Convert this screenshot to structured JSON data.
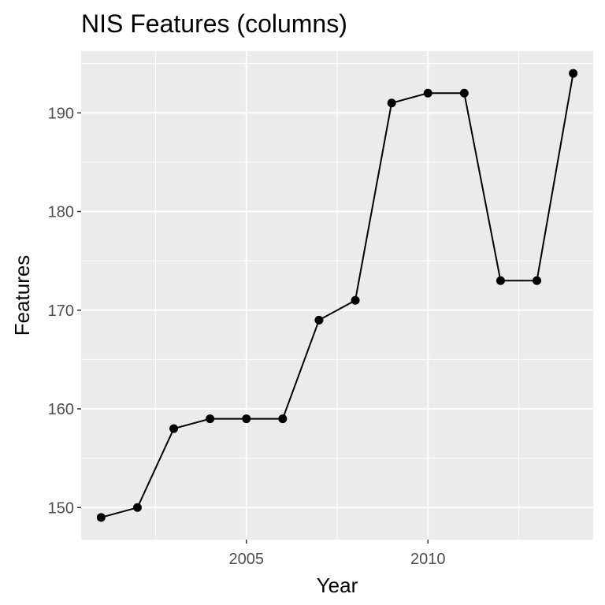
{
  "chart_data": {
    "type": "line",
    "title": "NIS Features (columns)",
    "xlabel": "Year",
    "ylabel": "Features",
    "x": [
      2001,
      2002,
      2003,
      2004,
      2005,
      2006,
      2007,
      2008,
      2009,
      2010,
      2011,
      2012,
      2013,
      2014
    ],
    "series": [
      {
        "values": [
          149,
          150,
          158,
          159,
          159,
          159,
          169,
          171,
          191,
          192,
          192,
          173,
          173,
          194
        ]
      }
    ],
    "xlim": [
      2000.45,
      2014.55
    ],
    "ylim": [
      146.75,
      196.25
    ],
    "x_ticks": [
      2005,
      2010
    ],
    "x_minor_ticks": [
      2002.5,
      2007.5,
      2012.5
    ],
    "y_ticks": [
      150,
      160,
      170,
      180,
      190
    ],
    "y_minor_ticks": [
      155,
      165,
      175,
      185,
      195
    ],
    "grid": true,
    "markers": true,
    "colors": {
      "panel": "#ebebeb",
      "grid": "#ffffff",
      "line": "#000000",
      "tick_label": "#4d4d4d"
    }
  }
}
